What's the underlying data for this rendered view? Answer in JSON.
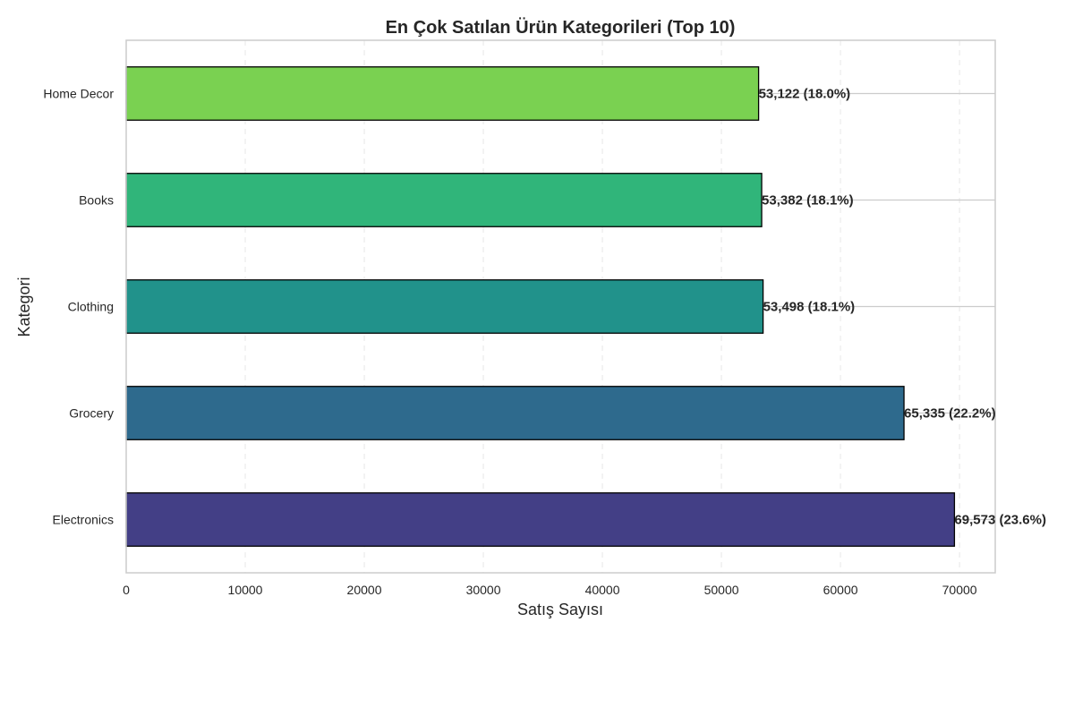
{
  "chart_data": {
    "type": "bar",
    "orientation": "horizontal",
    "title": "En Çok Satılan Ürün Kategorileri (Top 10)",
    "xlabel": "Satış Sayısı",
    "ylabel": "Kategori",
    "categories": [
      "Electronics",
      "Grocery",
      "Clothing",
      "Books",
      "Home Decor"
    ],
    "values": [
      69573,
      65335,
      53498,
      53382,
      53122
    ],
    "data_labels": [
      "69,573 (23.6%)",
      "65,335 (22.2%)",
      "53,498 (18.1%)",
      "53,382 (18.1%)",
      "53,122 (18.0%)"
    ],
    "xlim": [
      0,
      73000
    ],
    "xticks": [
      0,
      10000,
      20000,
      30000,
      40000,
      50000,
      60000,
      70000
    ],
    "xtick_labels": [
      "0",
      "10000",
      "20000",
      "30000",
      "40000",
      "50000",
      "60000",
      "70000"
    ],
    "colors": [
      "#433f86",
      "#2e6a8d",
      "#21928b",
      "#30b57a",
      "#7ad151"
    ],
    "bar_edge_color": "#000000",
    "grid": {
      "x": true,
      "x_style": "dashed",
      "y": true,
      "y_style": "solid"
    },
    "legend": "none"
  }
}
